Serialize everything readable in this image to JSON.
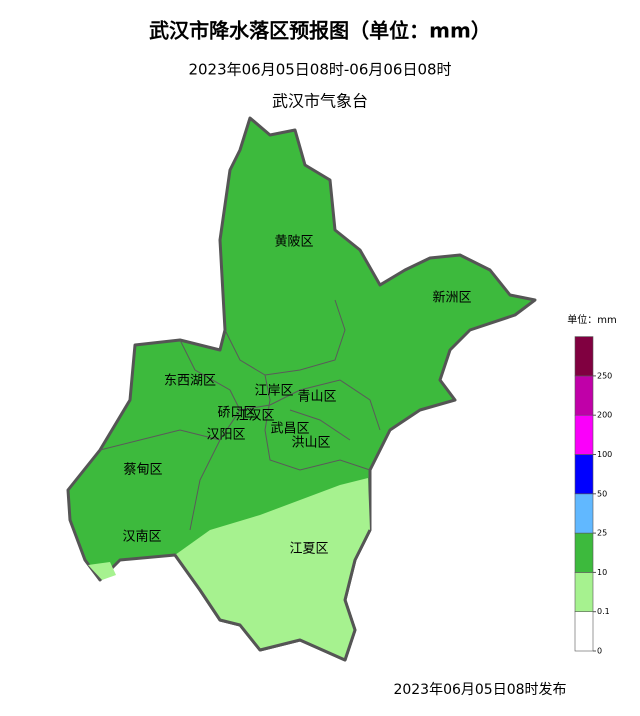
{
  "header": {
    "title": "武汉市降水落区预报图（单位：mm）",
    "period": "2023年06月05日08时-06月06日08时",
    "agency": "武汉市气象台"
  },
  "districts": [
    "黄陂区",
    "新洲区",
    "东西湖区",
    "江岸区",
    "青山区",
    "硚口区",
    "江汉区",
    "汉阳区",
    "武昌区",
    "洪山区",
    "蔡甸区",
    "汉南区",
    "江夏区"
  ],
  "legend": {
    "title": "单位：mm",
    "ticks": [
      0,
      0.1,
      10,
      25,
      50,
      100,
      200,
      250
    ],
    "colors": [
      "#ffffff",
      "#a6f28f",
      "#3dba3d",
      "#61b8ff",
      "#0000ff",
      "#fa00fa",
      "#c000a8",
      "#800040"
    ]
  },
  "footer": {
    "issued": "2023年06月05日08时发布"
  }
}
